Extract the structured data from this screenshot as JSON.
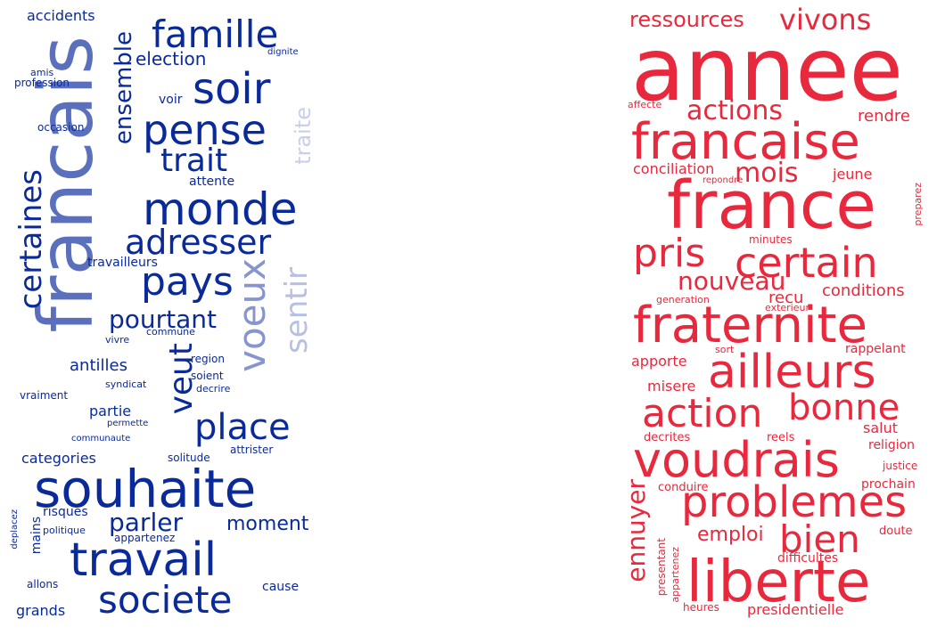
{
  "clouds": [
    {
      "id": "left",
      "words": [
        {
          "t": "francais",
          "c": "#5a70bd"
        },
        {
          "t": "souhaite",
          "c": "#0a2a9a"
        },
        {
          "t": "travail",
          "c": "#0a2a9a"
        },
        {
          "t": "monde",
          "c": "#0a2a9a"
        },
        {
          "t": "famille",
          "c": "#0a2a9a"
        },
        {
          "t": "soir",
          "c": "#0a2a9a"
        },
        {
          "t": "pense",
          "c": "#0a2a9a"
        },
        {
          "t": "pays",
          "c": "#0a2a9a"
        },
        {
          "t": "adresser",
          "c": "#0a2a9a"
        },
        {
          "t": "societe",
          "c": "#0a2a9a"
        },
        {
          "t": "place",
          "c": "#0a2a9a"
        },
        {
          "t": "trait",
          "c": "#0a2a9a"
        },
        {
          "t": "certaines",
          "c": "#0a2a9a"
        },
        {
          "t": "voeux",
          "c": "#8795cf"
        },
        {
          "t": "veut",
          "c": "#0a2a9a"
        },
        {
          "t": "sentir",
          "c": "#b7c0e2"
        },
        {
          "t": "traite",
          "c": "#c8cfea"
        },
        {
          "t": "pourtant",
          "c": "#0a2a9a"
        },
        {
          "t": "parler",
          "c": "#0a2a9a"
        },
        {
          "t": "moment",
          "c": "#0a2a9a"
        },
        {
          "t": "ensemble",
          "c": "#0a2a9a"
        },
        {
          "t": "election",
          "c": "#0a2a9a"
        },
        {
          "t": "accidents",
          "c": "#0a2a9a"
        },
        {
          "t": "antilles",
          "c": "#0a2a9a"
        },
        {
          "t": "categories",
          "c": "#0a2a9a"
        },
        {
          "t": "partie",
          "c": "#0a2a9a"
        },
        {
          "t": "travailleurs",
          "c": "#0a2a9a"
        },
        {
          "t": "grands",
          "c": "#0a2a9a"
        },
        {
          "t": "cause",
          "c": "#0a2a9a"
        },
        {
          "t": "voir",
          "c": "#0a2a9a"
        },
        {
          "t": "attente",
          "c": "#0a2a9a"
        },
        {
          "t": "risques",
          "c": "#0a2a9a"
        },
        {
          "t": "mains",
          "c": "#0a2a9a"
        },
        {
          "t": "allons",
          "c": "#0a2a9a"
        },
        {
          "t": "appartenez",
          "c": "#0a2a9a"
        },
        {
          "t": "solitude",
          "c": "#0a2a9a"
        },
        {
          "t": "attrister",
          "c": "#0a2a9a"
        },
        {
          "t": "politique",
          "c": "#0a2a9a"
        },
        {
          "t": "region",
          "c": "#0a2a9a"
        },
        {
          "t": "soient",
          "c": "#0a2a9a"
        },
        {
          "t": "decrire",
          "c": "#0a2a9a"
        },
        {
          "t": "vraiment",
          "c": "#0a2a9a"
        },
        {
          "t": "syndicat",
          "c": "#0a2a9a"
        },
        {
          "t": "vivre",
          "c": "#0a2a9a"
        },
        {
          "t": "commune",
          "c": "#0a2a9a"
        },
        {
          "t": "occasion",
          "c": "#0a2a9a"
        },
        {
          "t": "profession",
          "c": "#0a2a9a"
        },
        {
          "t": "amis",
          "c": "#0a2a9a"
        },
        {
          "t": "dignite",
          "c": "#0a2a9a"
        },
        {
          "t": "permette",
          "c": "#0a2a9a"
        },
        {
          "t": "communaute",
          "c": "#0a2a9a"
        },
        {
          "t": "deplacez",
          "c": "#0a2a9a"
        }
      ]
    },
    {
      "id": "right",
      "words": [
        {
          "t": "annee",
          "c": "#e8293d"
        },
        {
          "t": "france",
          "c": "#e8293d"
        },
        {
          "t": "francaise",
          "c": "#e8293d"
        },
        {
          "t": "fraternite",
          "c": "#e8293d"
        },
        {
          "t": "liberte",
          "c": "#e8293d"
        },
        {
          "t": "voudrais",
          "c": "#e8293d"
        },
        {
          "t": "ailleurs",
          "c": "#e8293d"
        },
        {
          "t": "problemes",
          "c": "#e8293d"
        },
        {
          "t": "certain",
          "c": "#e8293d"
        },
        {
          "t": "action",
          "c": "#e8293d"
        },
        {
          "t": "bonne",
          "c": "#e8293d"
        },
        {
          "t": "bien",
          "c": "#e8293d"
        },
        {
          "t": "pris",
          "c": "#e8293d"
        },
        {
          "t": "actions",
          "c": "#e8293d"
        },
        {
          "t": "vivons",
          "c": "#e8293d"
        },
        {
          "t": "nouveau",
          "c": "#e8293d"
        },
        {
          "t": "ressources",
          "c": "#e8293d"
        },
        {
          "t": "mois",
          "c": "#e8293d"
        },
        {
          "t": "ennuyer",
          "c": "#e8293d"
        },
        {
          "t": "emploi",
          "c": "#e8293d"
        },
        {
          "t": "rendre",
          "c": "#e8293d"
        },
        {
          "t": "conditions",
          "c": "#e8293d"
        },
        {
          "t": "conciliation",
          "c": "#e8293d"
        },
        {
          "t": "jeune",
          "c": "#e8293d"
        },
        {
          "t": "recu",
          "c": "#e8293d"
        },
        {
          "t": "apporte",
          "c": "#e8293d"
        },
        {
          "t": "misere",
          "c": "#e8293d"
        },
        {
          "t": "salut",
          "c": "#e8293d"
        },
        {
          "t": "religion",
          "c": "#e8293d"
        },
        {
          "t": "prochain",
          "c": "#e8293d"
        },
        {
          "t": "presidentielle",
          "c": "#e8293d"
        },
        {
          "t": "rappelant",
          "c": "#e8293d"
        },
        {
          "t": "difficultes",
          "c": "#e8293d"
        },
        {
          "t": "doute",
          "c": "#e8293d"
        },
        {
          "t": "justice",
          "c": "#e8293d"
        },
        {
          "t": "conduire",
          "c": "#e8293d"
        },
        {
          "t": "decrites",
          "c": "#e8293d"
        },
        {
          "t": "reels",
          "c": "#e8293d"
        },
        {
          "t": "heures",
          "c": "#e8293d"
        },
        {
          "t": "minutes",
          "c": "#e8293d"
        },
        {
          "t": "generation",
          "c": "#e8293d"
        },
        {
          "t": "exterieur",
          "c": "#e8293d"
        },
        {
          "t": "sort",
          "c": "#e8293d"
        },
        {
          "t": "affecte",
          "c": "#e8293d"
        },
        {
          "t": "repondre",
          "c": "#e8293d"
        },
        {
          "t": "preparez",
          "c": "#e8293d"
        },
        {
          "t": "presentant",
          "c": "#e8293d"
        },
        {
          "t": "appartenez",
          "c": "#e8293d"
        }
      ]
    }
  ]
}
